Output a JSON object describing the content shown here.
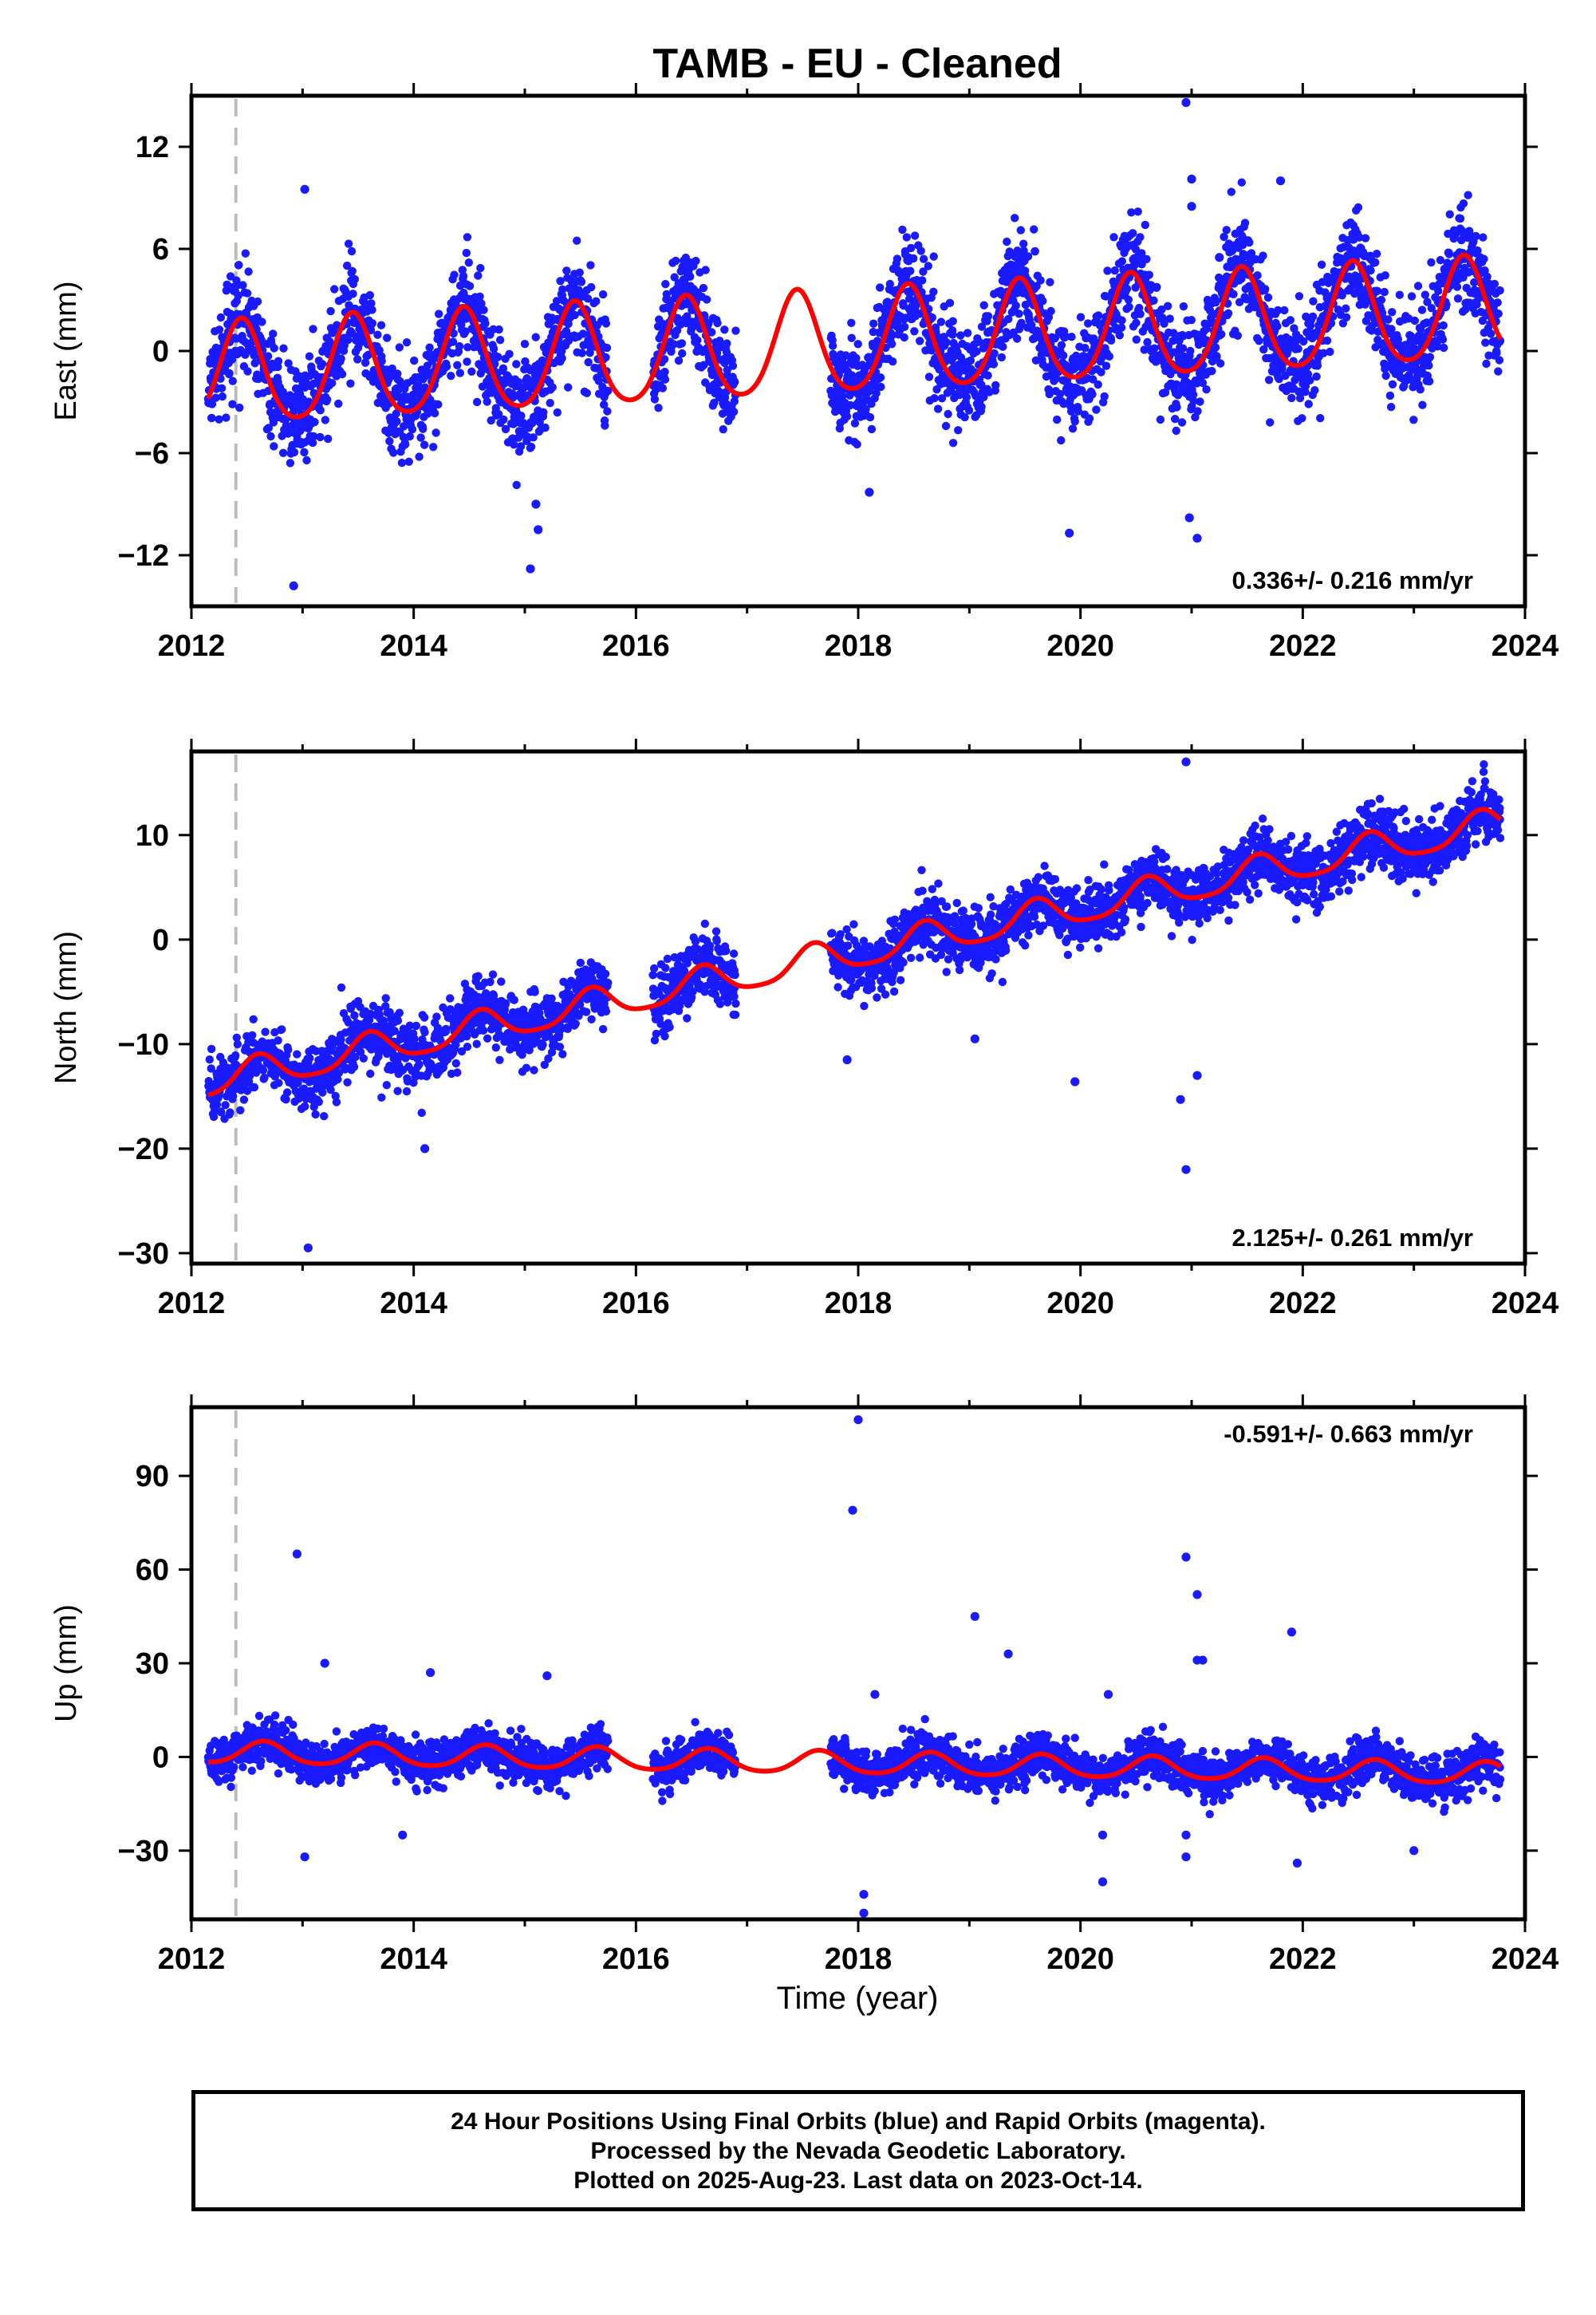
{
  "title": "TAMB  - EU - Cleaned",
  "colors": {
    "data": "#1a1aff",
    "model": "#ff0000",
    "antenna_line": "#bbbbbb",
    "frame": "#000000"
  },
  "x_label": "Time (year)",
  "footer": {
    "line1": "24 Hour Positions Using Final Orbits (blue) and Rapid Orbits (magenta).",
    "line2": "Processed by the Nevada Geodetic Laboratory.",
    "line3": "Plotted on 2025-Aug-23. Last data on 2023-Oct-14."
  },
  "chart_data": [
    {
      "type": "scatter",
      "name": "east",
      "ylabel": "East (mm)",
      "xlim": [
        2012,
        2024
      ],
      "ylim": [
        -15,
        15
      ],
      "xticks": [
        2012,
        2014,
        2016,
        2018,
        2020,
        2022,
        2024
      ],
      "yticks": [
        -12,
        -6,
        0,
        6,
        12
      ],
      "ytick_labels": [
        "−12",
        "−6",
        "0",
        "6",
        "12"
      ],
      "rate_text": "0.336+/- 0.216 mm/yr",
      "rate_position": "bottom-right",
      "vline_x": 2012.4,
      "data_start": 2012.15,
      "data_end": 2023.78,
      "trend": {
        "offset": -1.6,
        "rate": 0.336,
        "annual_amp": 3.0,
        "annual_phase_peak": 2012.45,
        "semi_amp": 0.4
      },
      "scatter_spread": 1.5,
      "gaps": [
        [
          2015.75,
          2016.15
        ],
        [
          2016.9,
          2017.75
        ]
      ],
      "outliers": [
        [
          2012.92,
          -13.8
        ],
        [
          2013.02,
          9.5
        ],
        [
          2015.05,
          -12.8
        ],
        [
          2015.12,
          -10.5
        ],
        [
          2015.1,
          -9
        ],
        [
          2019.9,
          -10.7
        ],
        [
          2020.95,
          14.6
        ],
        [
          2021.0,
          10.1
        ],
        [
          2021.0,
          8.5
        ],
        [
          2021.05,
          -11
        ],
        [
          2020.98,
          -9.8
        ],
        [
          2021.8,
          10.0
        ],
        [
          2018.1,
          -8.3
        ],
        [
          2020.4,
          6.3
        ],
        [
          2021.25,
          5.5
        ]
      ]
    },
    {
      "type": "scatter",
      "name": "north",
      "ylabel": "North (mm)",
      "xlim": [
        2012,
        2024
      ],
      "ylim": [
        -31,
        18
      ],
      "xticks": [
        2012,
        2014,
        2016,
        2018,
        2020,
        2022,
        2024
      ],
      "yticks": [
        -30,
        -20,
        -10,
        0,
        10
      ],
      "ytick_labels": [
        "−30",
        "−20",
        "−10",
        "0",
        "10"
      ],
      "rate_text": "2.125+/- 0.261 mm/yr",
      "rate_position": "bottom-right",
      "vline_x": 2012.4,
      "data_start": 2012.15,
      "data_end": 2023.78,
      "trend": {
        "offset": -14.0,
        "rate": 2.125,
        "annual_amp": 1.5,
        "annual_phase_peak": 2012.6,
        "semi_amp": 0.3
      },
      "scatter_spread": 1.5,
      "gaps": [
        [
          2015.75,
          2016.15
        ],
        [
          2016.9,
          2017.75
        ]
      ],
      "outliers": [
        [
          2013.05,
          -29.5
        ],
        [
          2014.1,
          -20
        ],
        [
          2020.95,
          17.0
        ],
        [
          2020.95,
          -22
        ],
        [
          2020.9,
          -15.3
        ],
        [
          2017.9,
          -11.5
        ],
        [
          2019.95,
          -13.6
        ],
        [
          2019.05,
          -9.5
        ],
        [
          2021.05,
          -13
        ]
      ]
    },
    {
      "type": "scatter",
      "name": "up",
      "ylabel": "Up (mm)",
      "xlim": [
        2012,
        2024
      ],
      "ylim": [
        -52,
        112
      ],
      "xticks": [
        2012,
        2014,
        2016,
        2018,
        2020,
        2022,
        2024
      ],
      "yticks": [
        -30,
        0,
        30,
        60,
        90
      ],
      "ytick_labels": [
        "−30",
        "0",
        "30",
        "60",
        "90"
      ],
      "rate_text": "-0.591+/- 0.663 mm/yr",
      "rate_position": "top-right",
      "vline_x": 2012.4,
      "data_start": 2012.15,
      "data_end": 2023.78,
      "trend": {
        "offset": 1.5,
        "rate": -0.591,
        "annual_amp": 3.5,
        "annual_phase_peak": 2012.65,
        "semi_amp": 0.5
      },
      "scatter_spread": 3.5,
      "gaps": [
        [
          2015.75,
          2016.15
        ],
        [
          2016.9,
          2017.75
        ]
      ],
      "outliers": [
        [
          2012.95,
          65
        ],
        [
          2013.2,
          30
        ],
        [
          2013.02,
          -32
        ],
        [
          2014.15,
          27
        ],
        [
          2013.9,
          -25
        ],
        [
          2015.2,
          26
        ],
        [
          2018.0,
          108
        ],
        [
          2017.95,
          79
        ],
        [
          2018.05,
          -44
        ],
        [
          2018.05,
          -50
        ],
        [
          2018.15,
          20
        ],
        [
          2019.05,
          45
        ],
        [
          2019.35,
          33
        ],
        [
          2020.2,
          -25
        ],
        [
          2020.2,
          -40
        ],
        [
          2020.25,
          20
        ],
        [
          2020.95,
          64
        ],
        [
          2021.05,
          52
        ],
        [
          2021.05,
          31
        ],
        [
          2021.1,
          31
        ],
        [
          2020.95,
          -25
        ],
        [
          2020.95,
          -32
        ],
        [
          2021.9,
          40
        ],
        [
          2021.95,
          -34
        ],
        [
          2023.0,
          -30
        ]
      ]
    }
  ]
}
